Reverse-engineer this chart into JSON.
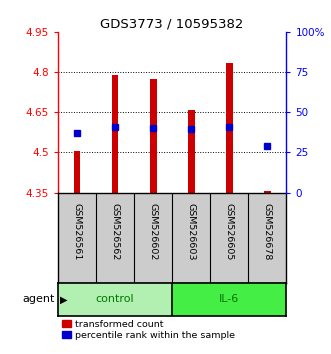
{
  "title": "GDS3773 / 10595382",
  "samples": [
    "GSM526561",
    "GSM526562",
    "GSM526602",
    "GSM526603",
    "GSM526605",
    "GSM526678"
  ],
  "groups": [
    "control",
    "control",
    "control",
    "IL-6",
    "IL-6",
    "IL-6"
  ],
  "bar_bottom": [
    4.35,
    4.35,
    4.35,
    4.35,
    4.35,
    4.35
  ],
  "bar_top": [
    4.505,
    4.79,
    4.775,
    4.66,
    4.835,
    4.357
  ],
  "percentile_value": [
    4.572,
    4.595,
    4.591,
    4.586,
    4.594,
    4.524
  ],
  "ylim": [
    4.35,
    4.95
  ],
  "yticks_left": [
    4.35,
    4.5,
    4.65,
    4.8,
    4.95
  ],
  "yticks_right_pct": [
    0,
    25,
    50,
    75,
    100
  ],
  "ytick_labels_right": [
    "0",
    "25",
    "50",
    "75",
    "100%"
  ],
  "ctrl_color": "#b2f0b2",
  "il6_color": "#44ee44",
  "bar_color": "#cc0000",
  "percentile_color": "#0000cc",
  "group_label_color": "#007700",
  "background_sample": "#cccccc",
  "legend_items": [
    "transformed count",
    "percentile rank within the sample"
  ],
  "grid_yticks": [
    4.5,
    4.65,
    4.8
  ]
}
